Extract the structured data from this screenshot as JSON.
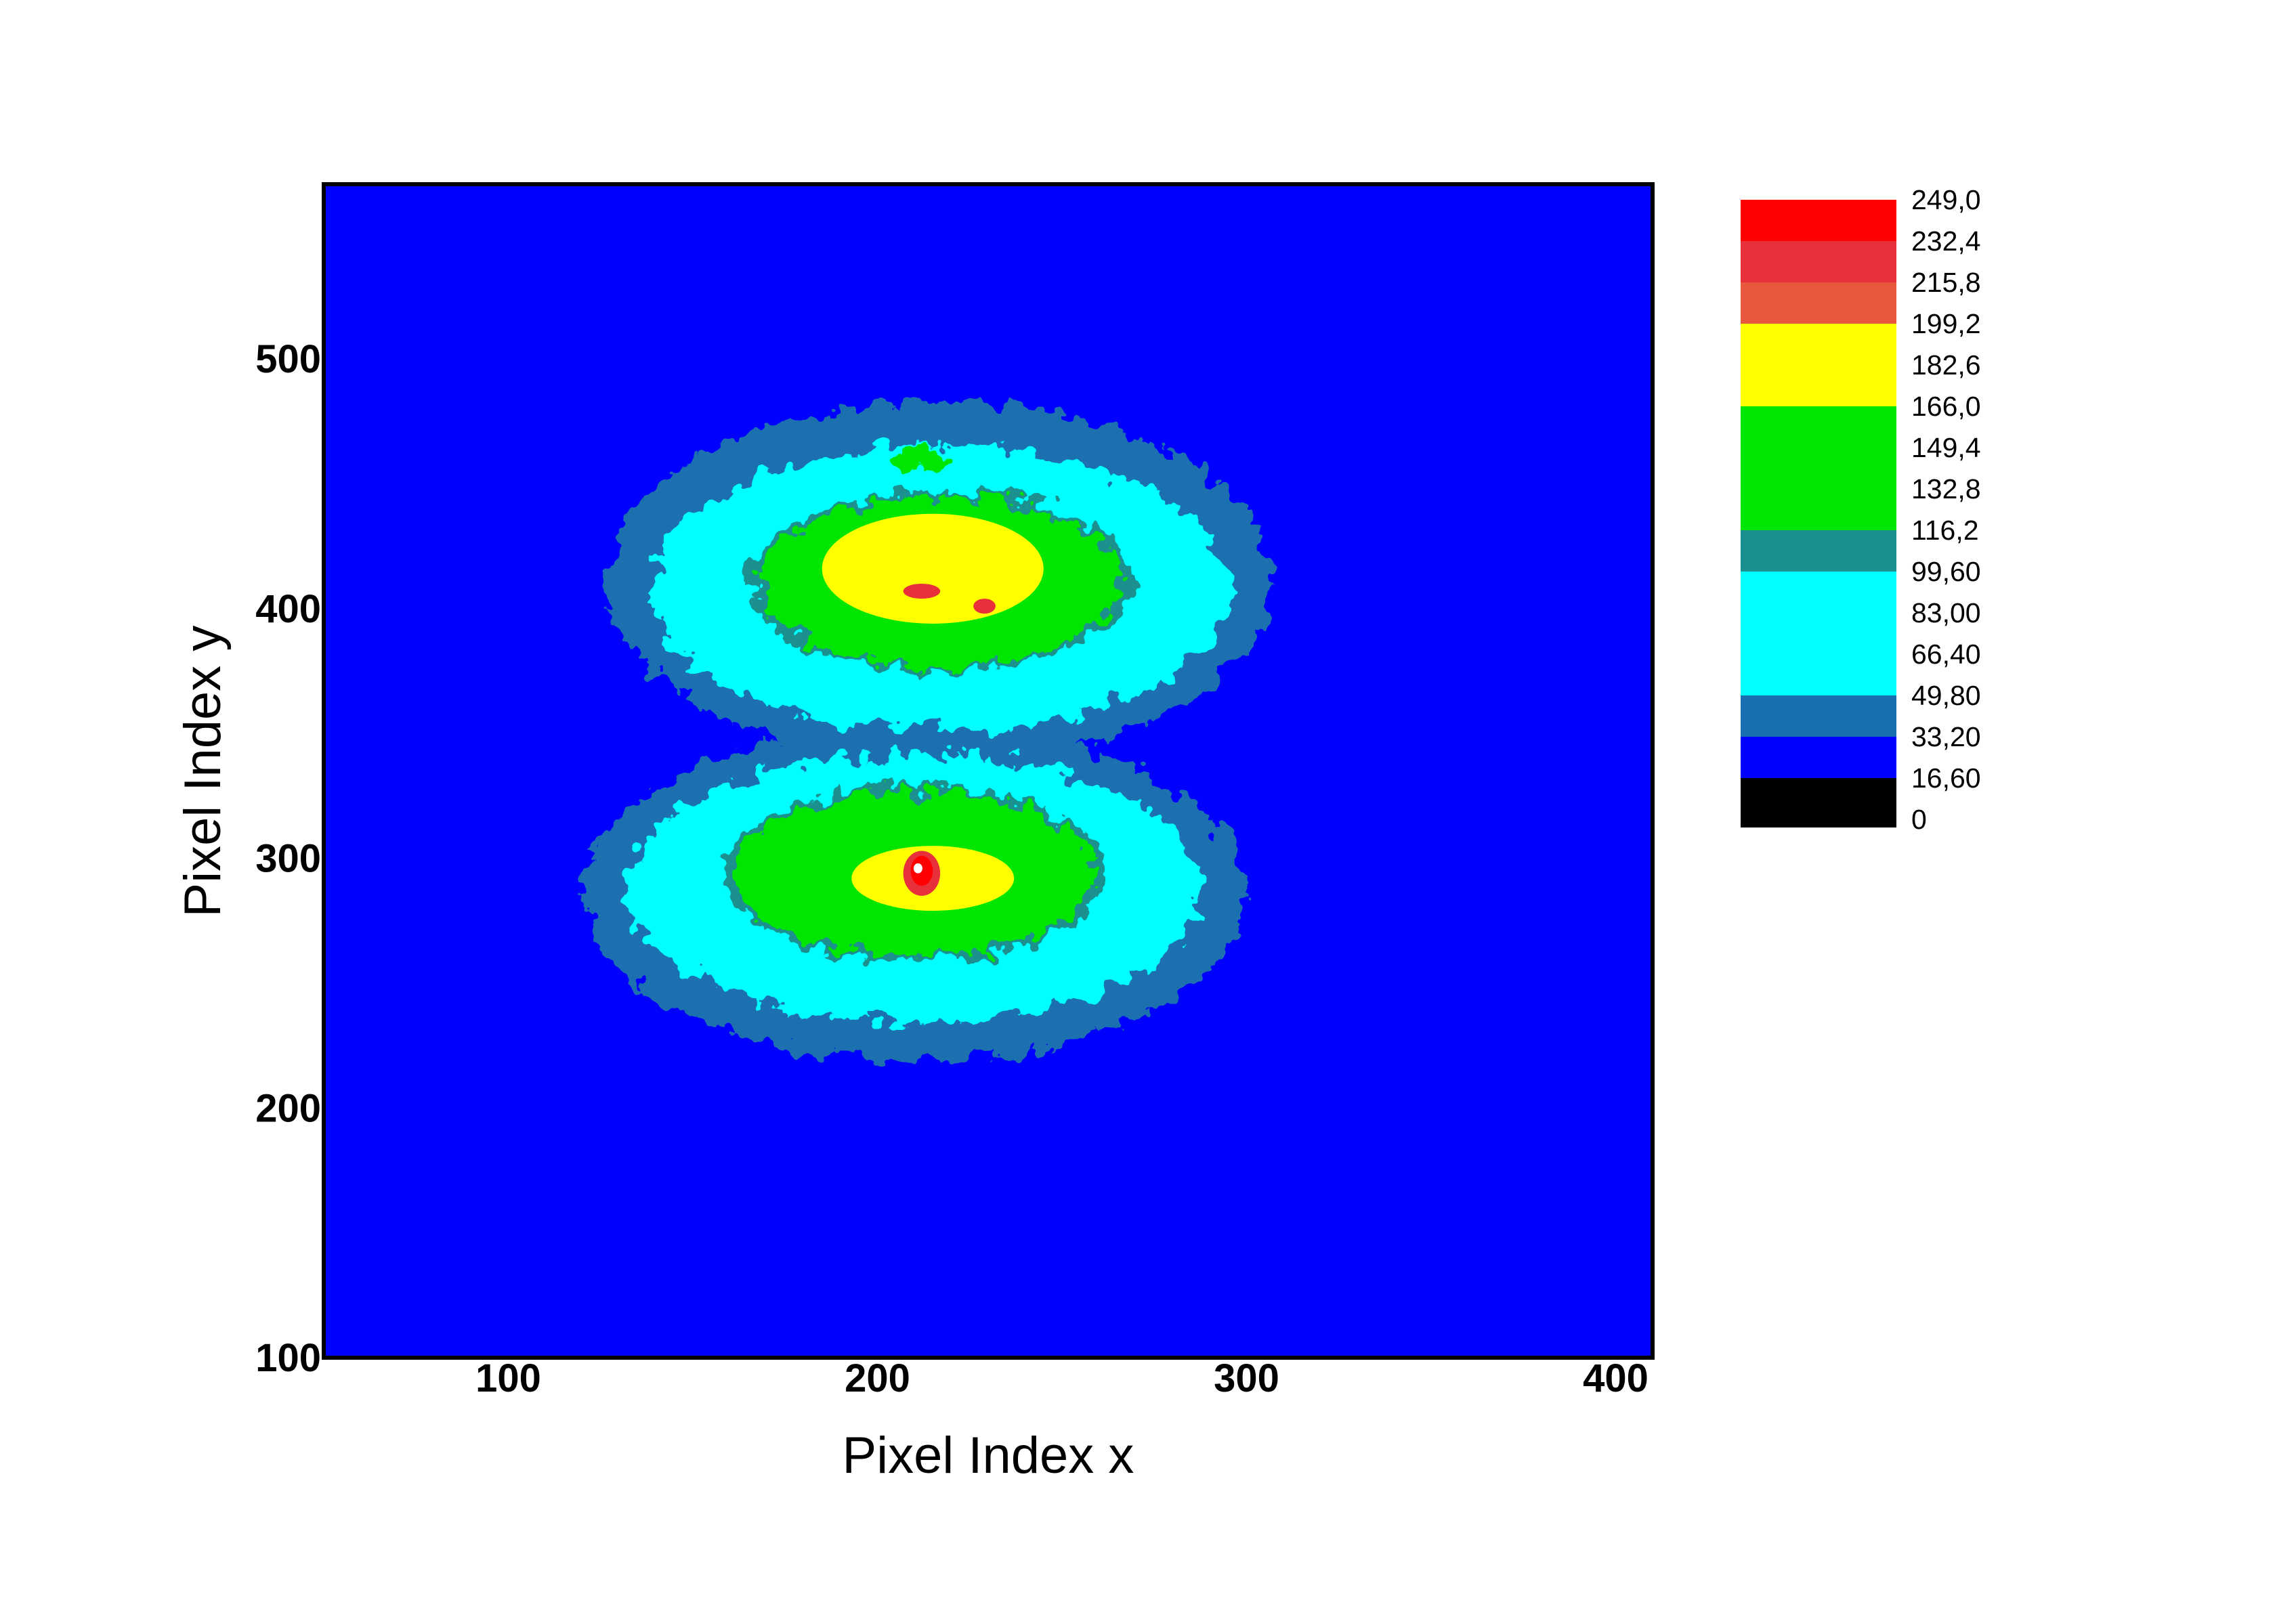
{
  "chart_data": {
    "type": "heatmap",
    "title": "",
    "xlabel": "Pixel Index x",
    "ylabel": "Pixel Index y",
    "xlim": [
      50,
      410
    ],
    "ylim": [
      100,
      570
    ],
    "x_ticks": [
      {
        "value": 100,
        "label": "100"
      },
      {
        "value": 200,
        "label": "200"
      },
      {
        "value": 300,
        "label": "300"
      },
      {
        "value": 400,
        "label": "400"
      }
    ],
    "y_ticks": [
      {
        "value": 100,
        "label": "100"
      },
      {
        "value": 200,
        "label": "200"
      },
      {
        "value": 300,
        "label": "300"
      },
      {
        "value": 400,
        "label": "400"
      },
      {
        "value": 500,
        "label": "500"
      }
    ],
    "grid": false,
    "legend": {
      "placement": "right",
      "levels": [
        {
          "value": 249.0,
          "label": "249,0"
        },
        {
          "value": 232.4,
          "label": "232,4"
        },
        {
          "value": 215.8,
          "label": "215,8"
        },
        {
          "value": 199.2,
          "label": "199,2"
        },
        {
          "value": 182.6,
          "label": "182,6"
        },
        {
          "value": 166.0,
          "label": "166,0"
        },
        {
          "value": 149.4,
          "label": "149,4"
        },
        {
          "value": 132.8,
          "label": "132,8"
        },
        {
          "value": 116.2,
          "label": "116,2"
        },
        {
          "value": 99.6,
          "label": "99,60"
        },
        {
          "value": 83.0,
          "label": "83,00"
        },
        {
          "value": 66.4,
          "label": "66,40"
        },
        {
          "value": 49.8,
          "label": "49,80"
        },
        {
          "value": 33.2,
          "label": "33,20"
        },
        {
          "value": 16.6,
          "label": "16,60"
        },
        {
          "value": 0,
          "label": "0"
        }
      ],
      "bands": [
        {
          "from": 232.4,
          "to": 249.0,
          "color": "#ff0000"
        },
        {
          "from": 215.8,
          "to": 232.4,
          "color": "#e8303a"
        },
        {
          "from": 199.2,
          "to": 215.8,
          "color": "#e8583c"
        },
        {
          "from": 182.6,
          "to": 199.2,
          "color": "#ffff00"
        },
        {
          "from": 166.0,
          "to": 182.6,
          "color": "#ffff00"
        },
        {
          "from": 149.4,
          "to": 166.0,
          "color": "#00e600"
        },
        {
          "from": 132.8,
          "to": 149.4,
          "color": "#00e600"
        },
        {
          "from": 116.2,
          "to": 132.8,
          "color": "#00e600"
        },
        {
          "from": 99.6,
          "to": 116.2,
          "color": "#1a8f8f"
        },
        {
          "from": 83.0,
          "to": 99.6,
          "color": "#00ffff"
        },
        {
          "from": 66.4,
          "to": 83.0,
          "color": "#00ffff"
        },
        {
          "from": 49.8,
          "to": 66.4,
          "color": "#00ffff"
        },
        {
          "from": 33.2,
          "to": 49.8,
          "color": "#1a6fb0"
        },
        {
          "from": 16.6,
          "to": 33.2,
          "color": "#0000ff"
        },
        {
          "from": 0,
          "to": 16.6,
          "color": "#000000"
        }
      ]
    },
    "background_color": "#0000ff",
    "spots": [
      {
        "name": "upper",
        "center": [
          217,
          411
        ],
        "contours": [
          {
            "color": "#1a6fb0",
            "rx": 90,
            "ry": 72,
            "dx": 0,
            "dy": 0
          },
          {
            "color": "#00ffff",
            "rx": 78,
            "ry": 58,
            "dx": 0,
            "dy": -3
          },
          {
            "color": "#1a8f8f",
            "rx": 52,
            "ry": 36,
            "dx": 0,
            "dy": 0
          },
          {
            "color": "#00e600",
            "rx": 49,
            "ry": 34,
            "dx": 0,
            "dy": 0
          },
          {
            "color": "#ffff00",
            "rx": 30,
            "ry": 22,
            "dx": -2,
            "dy": 5
          },
          {
            "color": "#e8303a",
            "rx": 5,
            "ry": 3,
            "dx": -5,
            "dy": -4
          },
          {
            "color": "#e8303a",
            "rx": 3,
            "ry": 3,
            "dx": 12,
            "dy": -10
          }
        ],
        "inner_ring": {
          "color": "#00e600",
          "cx": 212,
          "cy": 460,
          "rx": 8,
          "ry": 5
        }
      },
      {
        "name": "lower",
        "center": [
          210,
          286
        ],
        "contours": [
          {
            "color": "#1a6fb0",
            "rx": 90,
            "ry": 67,
            "dx": 0,
            "dy": 0
          },
          {
            "color": "#00ffff",
            "rx": 78,
            "ry": 54,
            "dx": 0,
            "dy": 2
          },
          {
            "color": "#1a8f8f",
            "rx": 52,
            "ry": 35,
            "dx": 0,
            "dy": 8
          },
          {
            "color": "#00e600",
            "rx": 49,
            "ry": 33,
            "dx": 0,
            "dy": 8
          },
          {
            "color": "#ffff00",
            "rx": 22,
            "ry": 13,
            "dx": 5,
            "dy": 6
          },
          {
            "color": "#e8303a",
            "rx": 5,
            "ry": 9,
            "dx": 2,
            "dy": 8
          },
          {
            "color": "#ff0000",
            "rx": 3,
            "ry": 6,
            "dx": 2,
            "dy": 9
          },
          {
            "color": "#ffffff",
            "rx": 1.2,
            "ry": 2,
            "dx": 1,
            "dy": 10
          }
        ]
      }
    ]
  }
}
